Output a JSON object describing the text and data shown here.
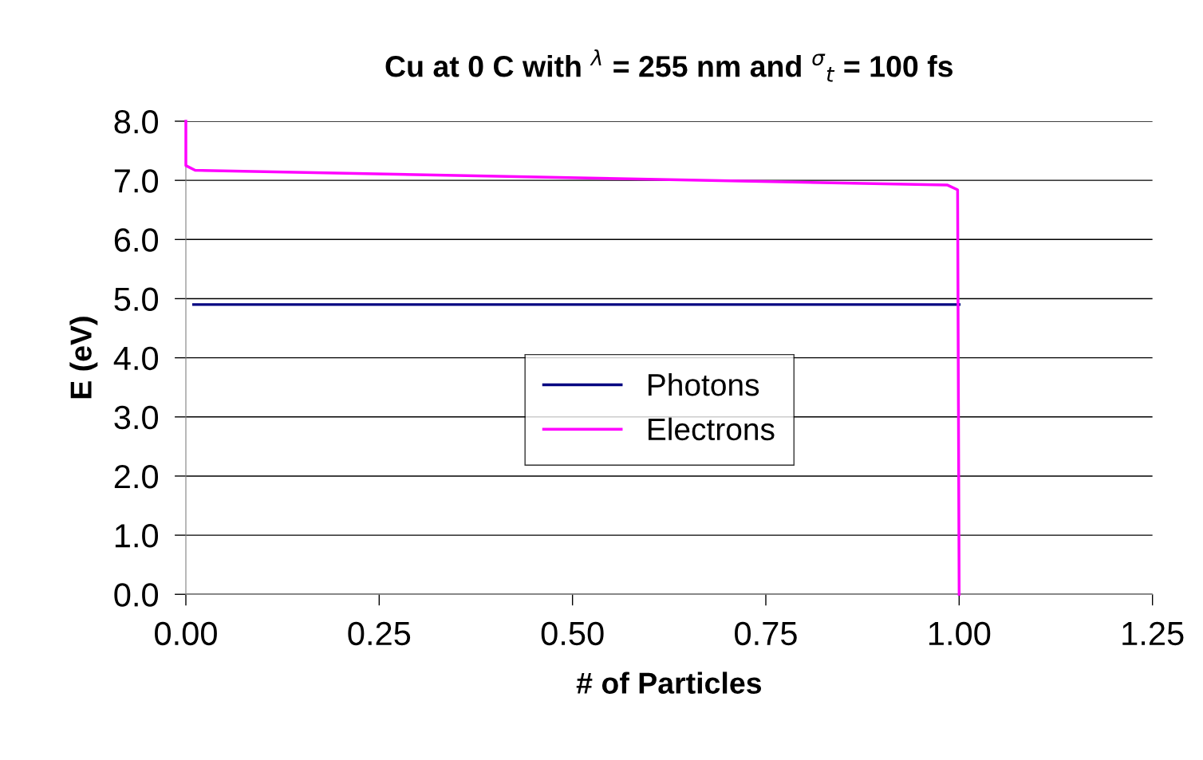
{
  "chart_data": {
    "type": "line",
    "title": "Cu at 0 C with $^{λ}$ = 255 nm and $^{σ}$$_{t}$ = 100 fs",
    "xlabel": "# of Particles",
    "ylabel": "E (eV)",
    "series": [
      {
        "name": "Photons",
        "color": "#000080",
        "x": [
          0.01,
          1.0
        ],
        "values": [
          4.9,
          4.9
        ]
      },
      {
        "name": "Electrons",
        "color": "#ff00ff",
        "x": [
          0.0,
          0.0,
          0.012,
          0.985,
          0.998,
          1.0
        ],
        "values": [
          8.0,
          7.25,
          7.17,
          6.92,
          6.84,
          0.0
        ]
      }
    ],
    "xlim": [
      0,
      1.25
    ],
    "xticks": [
      {
        "value": 0,
        "label": "0.00"
      },
      {
        "value": 0.25,
        "label": "0.25"
      },
      {
        "value": 0.5,
        "label": "0.50"
      },
      {
        "value": 0.75,
        "label": "0.75"
      },
      {
        "value": 1.0,
        "label": "1.00"
      },
      {
        "value": 1.25,
        "label": "1.25"
      }
    ],
    "ylim": [
      0,
      8
    ],
    "yticks": [
      {
        "value": 0,
        "label": "0.0"
      },
      {
        "value": 1,
        "label": "1.0"
      },
      {
        "value": 2,
        "label": "2.0"
      },
      {
        "value": 3,
        "label": "3.0"
      },
      {
        "value": 4,
        "label": "4.0"
      },
      {
        "value": 5,
        "label": "5.0"
      },
      {
        "value": 6,
        "label": "6.0"
      },
      {
        "value": 7,
        "label": "7.0"
      },
      {
        "value": 8,
        "label": "8.0"
      }
    ],
    "grid": "y",
    "legend": "center",
    "marker": "none",
    "line_style": "solid"
  }
}
